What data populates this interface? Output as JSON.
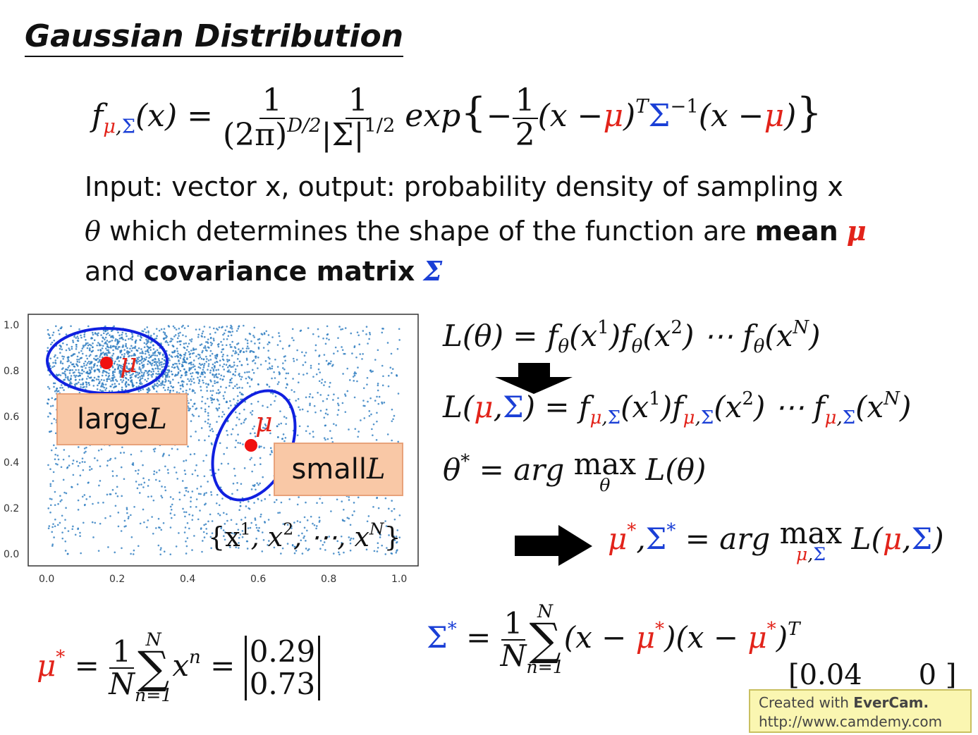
{
  "title": "Gaussian Distribution",
  "g": [
    "f",
    "μ",
    ",",
    "Σ",
    "(x) =",
    "1",
    "(2π)",
    "D/2",
    "1",
    "|Σ|",
    "1/2",
    "exp",
    "{",
    "−",
    "1",
    "2",
    "(x −",
    "μ",
    ")",
    "T",
    "Σ",
    "−1",
    "(x −",
    "μ",
    ")",
    "}"
  ],
  "text": {
    "line1": "Input: vector x, output: probability density of sampling x",
    "line2": [
      "θ",
      " which determines the shape of the function are ",
      "mean",
      "μ"
    ],
    "line3": [
      "and ",
      "covariance matrix",
      "Σ"
    ]
  },
  "plot": {
    "xticks": [
      "0.0",
      "0.2",
      "0.4",
      "0.6",
      "0.8",
      "1.0"
    ],
    "yticks": [
      "1.0",
      "0.8",
      "0.6",
      "0.4",
      "0.2",
      "0.0"
    ],
    "mu": "μ",
    "large": [
      "large ",
      "L"
    ],
    "small": [
      "small ",
      "L"
    ],
    "set": [
      "{x",
      "1",
      ", x",
      "2",
      ", ⋯, x",
      "N",
      "}"
    ]
  },
  "l1": [
    "L(θ) = f",
    "θ",
    "(x",
    "1",
    ")f",
    "θ",
    "(x",
    "2",
    ") ⋯ f",
    "θ",
    "(x",
    "N",
    ")"
  ],
  "l2": [
    "L(",
    "μ",
    ",",
    "Σ",
    ") = f",
    "μ",
    ",",
    "Σ",
    "(x",
    "1",
    ")f",
    "μ",
    ",",
    "Σ",
    "(x",
    "2",
    ") ⋯ f",
    "μ",
    ",",
    "Σ",
    "(x",
    "N",
    ")"
  ],
  "l3": [
    "θ",
    "*",
    " = arg ",
    "max",
    "θ",
    " L(θ)"
  ],
  "l4": [
    "μ",
    "*",
    ",",
    "Σ",
    "*",
    " = arg ",
    "max",
    "μ",
    ",",
    "Σ",
    " L(",
    "μ",
    ",",
    "Σ",
    ")"
  ],
  "m": [
    "μ",
    "*",
    " = ",
    "1",
    "N",
    "N",
    "∑",
    "n=1",
    "x",
    "n",
    " = ",
    "0.29",
    "0.73"
  ],
  "s": [
    "Σ",
    "*",
    " = ",
    "1",
    "N",
    "N",
    "∑",
    "n=1",
    "(x − ",
    "μ",
    "*",
    ")(x − ",
    "μ",
    "*",
    ")",
    "T"
  ],
  "partial": [
    "[0.04",
    "0 ]"
  ],
  "watermark": [
    "Created with ",
    "EverCam.",
    "http://www.camdemy.com"
  ]
}
